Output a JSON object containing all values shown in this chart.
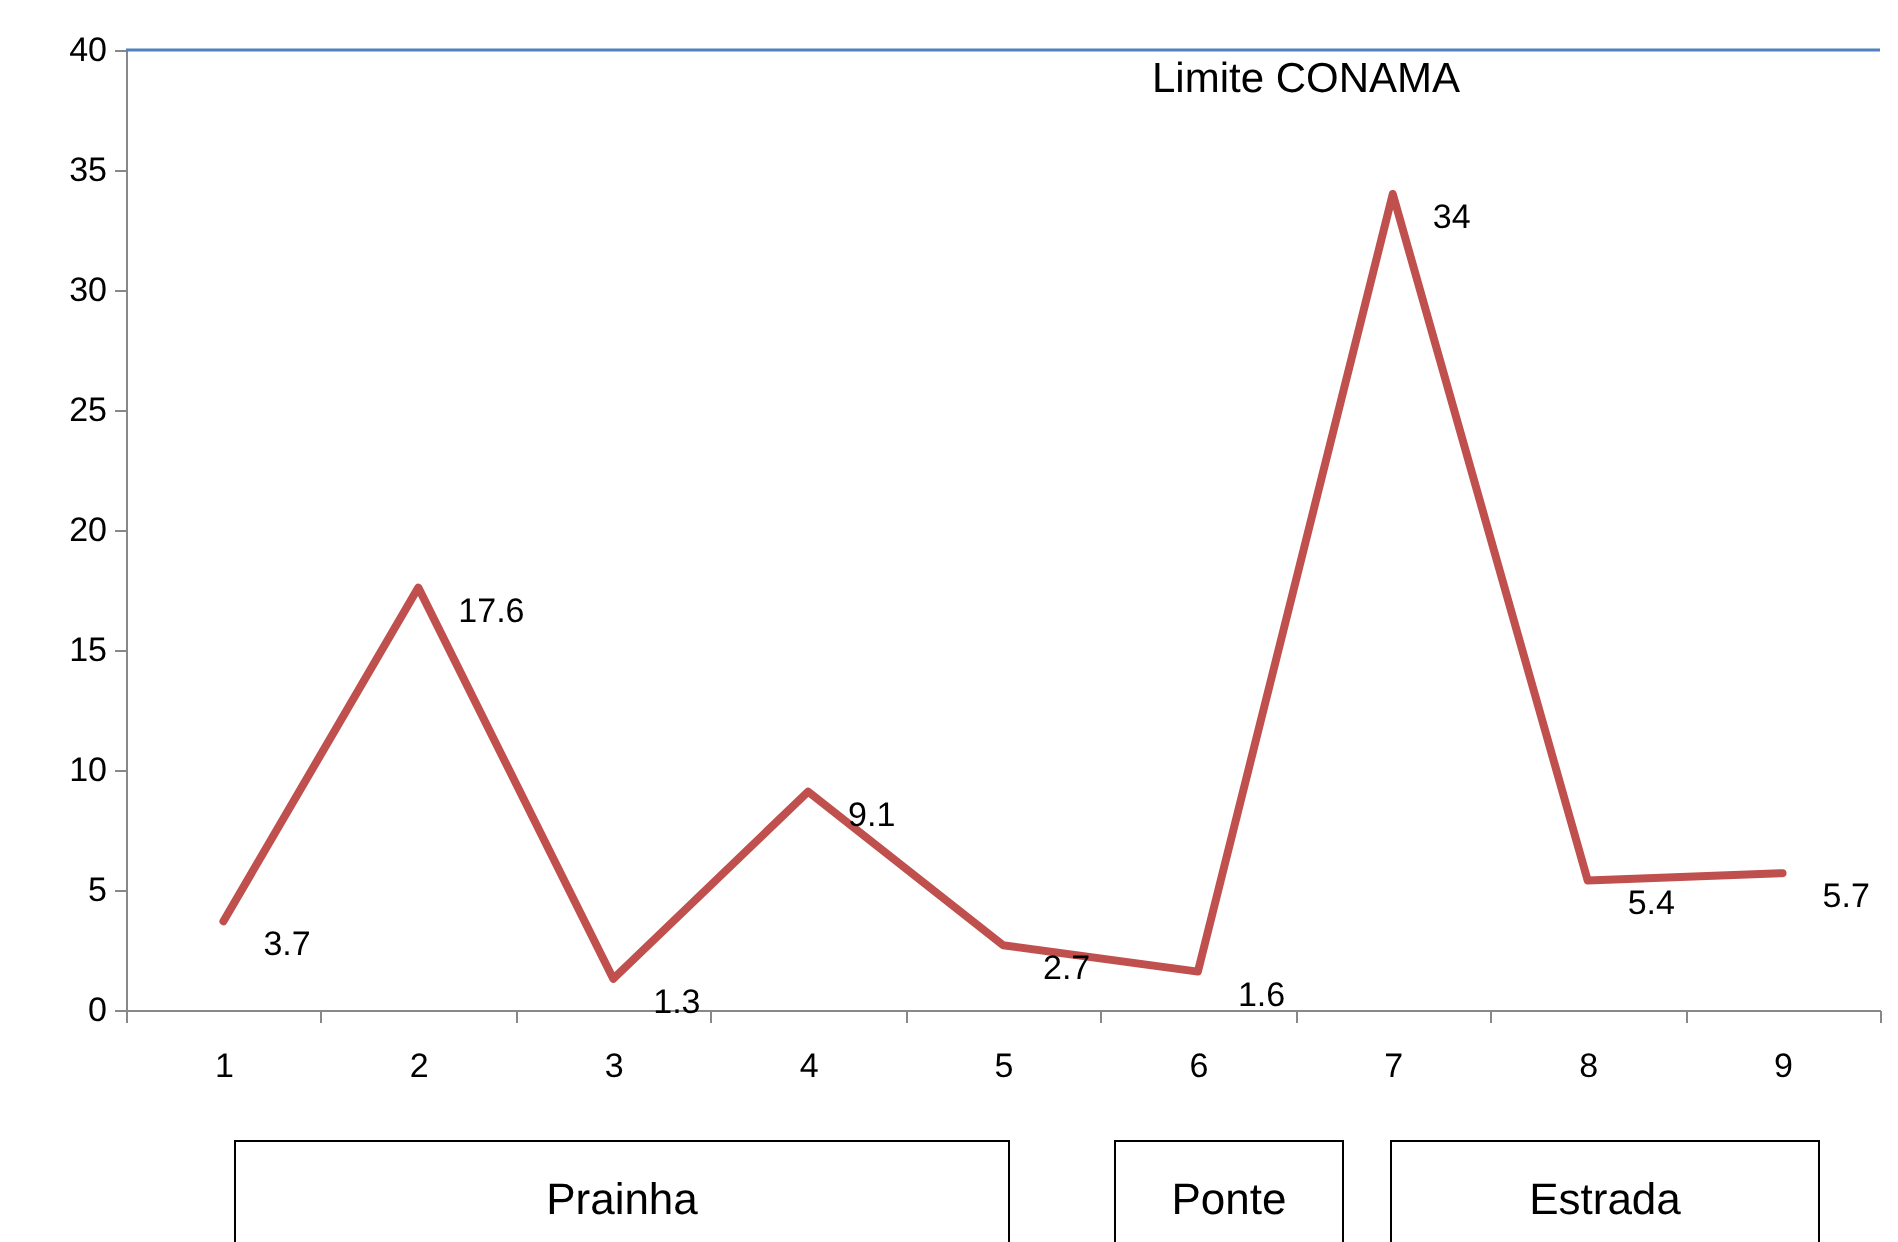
{
  "chart_data": {
    "type": "line",
    "categories": [
      "1",
      "2",
      "3",
      "4",
      "5",
      "6",
      "7",
      "8",
      "9"
    ],
    "series": [
      {
        "color": "#c0504d",
        "values": [
          3.7,
          17.6,
          1.3,
          9.1,
          2.7,
          1.6,
          34,
          5.4,
          5.7
        ]
      }
    ],
    "ylim": [
      0,
      40
    ],
    "yticks": [
      0,
      5,
      10,
      15,
      20,
      25,
      30,
      35,
      40
    ],
    "ref_lines": [
      {
        "axis": "y",
        "value": 40,
        "label": "Limite CONAMA",
        "color": "#4f81bd"
      }
    ],
    "data_labels": true,
    "grid": false,
    "marker": "none",
    "annotations": [
      "Prainha",
      "Ponte",
      "Estrada"
    ]
  }
}
